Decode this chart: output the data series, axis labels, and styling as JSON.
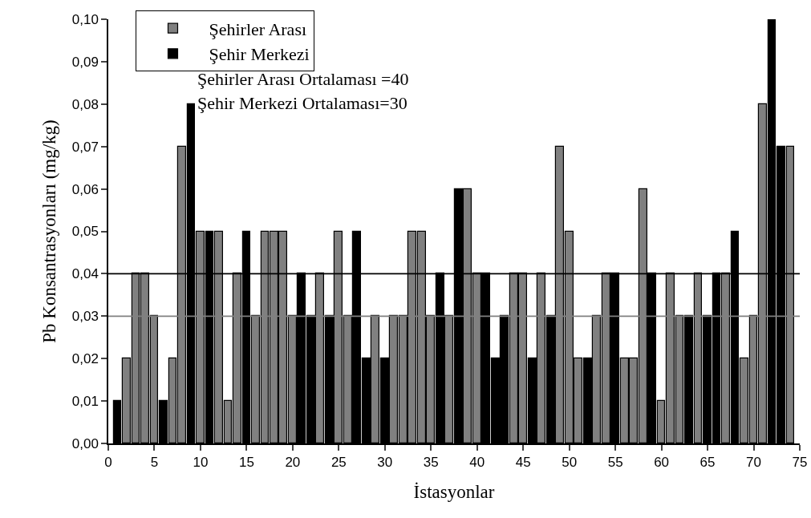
{
  "chart_data": {
    "type": "bar",
    "xlabel": "İstasyonlar",
    "ylabel": "Pb Konsantrasyonları (mg/kg)",
    "series": [
      {
        "name": "Şehirler Arası",
        "color": "#808080",
        "x": [
          2,
          3,
          4,
          5,
          7,
          8,
          10,
          12,
          13,
          14,
          16,
          17,
          18,
          19,
          20,
          23,
          25,
          26,
          29,
          31,
          32,
          33,
          34,
          35,
          37,
          39,
          40,
          44,
          45,
          47,
          49,
          50,
          51,
          53,
          54,
          56,
          57,
          58,
          60,
          61,
          62,
          64,
          67,
          69,
          70,
          71,
          74
        ],
        "values": [
          0.02,
          0.04,
          0.04,
          0.03,
          0.02,
          0.07,
          0.05,
          0.05,
          0.01,
          0.04,
          0.03,
          0.05,
          0.05,
          0.05,
          0.03,
          0.04,
          0.05,
          0.03,
          0.03,
          0.03,
          0.03,
          0.05,
          0.05,
          0.03,
          0.03,
          0.06,
          0.04,
          0.04,
          0.04,
          0.04,
          0.07,
          0.05,
          0.02,
          0.03,
          0.04,
          0.02,
          0.02,
          0.06,
          0.01,
          0.04,
          0.03,
          0.04,
          0.04,
          0.02,
          0.03,
          0.08,
          0.07
        ]
      },
      {
        "name": "Şehir Merkezi",
        "color": "#000000",
        "x": [
          1,
          6,
          9,
          11,
          15,
          21,
          22,
          24,
          27,
          28,
          30,
          36,
          38,
          41,
          42,
          43,
          46,
          48,
          52,
          55,
          59,
          63,
          65,
          66,
          68,
          72,
          73
        ],
        "values": [
          0.01,
          0.01,
          0.08,
          0.05,
          0.05,
          0.04,
          0.03,
          0.03,
          0.05,
          0.02,
          0.02,
          0.04,
          0.06,
          0.04,
          0.02,
          0.03,
          0.02,
          0.03,
          0.02,
          0.04,
          0.04,
          0.03,
          0.03,
          0.04,
          0.05,
          0.1,
          0.07
        ]
      }
    ],
    "xlim": [
      0,
      75
    ],
    "xticks": [
      0,
      5,
      10,
      15,
      20,
      25,
      30,
      35,
      40,
      45,
      50,
      55,
      60,
      65,
      70,
      75
    ],
    "ylim": [
      0,
      0.1
    ],
    "yticks": [
      {
        "value": 0,
        "label": "0,00"
      },
      {
        "value": 0.01,
        "label": "0,01"
      },
      {
        "value": 0.02,
        "label": "0,02"
      },
      {
        "value": 0.03,
        "label": "0,03"
      },
      {
        "value": 0.04,
        "label": "0,04"
      },
      {
        "value": 0.05,
        "label": "0,05"
      },
      {
        "value": 0.06,
        "label": "0,06"
      },
      {
        "value": 0.07,
        "label": "0,07"
      },
      {
        "value": 0.08,
        "label": "0,08"
      },
      {
        "value": 0.09,
        "label": "0,09"
      },
      {
        "value": 0.1,
        "label": "0,10"
      }
    ],
    "ref_lines": [
      {
        "axis": "y",
        "value": 0.04,
        "color": "#000000"
      },
      {
        "axis": "y",
        "value": 0.03,
        "color": "#808080"
      }
    ],
    "annotations": [
      "Şehirler Arası Ortalaması =40",
      "Şehir Merkezi Ortalaması=30"
    ],
    "grid": false,
    "legend": "top left"
  }
}
